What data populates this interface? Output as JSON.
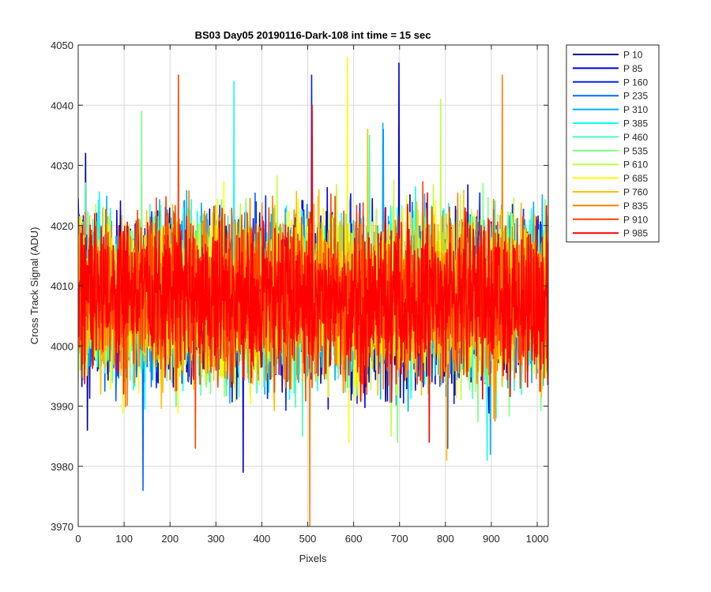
{
  "chart_data": {
    "type": "line",
    "title": "BS03 Day05 20190116-Dark-108 int time = 15 sec",
    "xlabel": "Pixels",
    "ylabel": "Cross Track Signal (ADU)",
    "xlim": [
      0,
      1024
    ],
    "ylim": [
      3970,
      4050
    ],
    "xticks": [
      0,
      100,
      200,
      300,
      400,
      500,
      600,
      700,
      800,
      900,
      1000
    ],
    "yticks": [
      3970,
      3980,
      3990,
      4000,
      4010,
      4020,
      4030,
      4040,
      4050
    ],
    "grid": true,
    "legend_location": "outside-top-right",
    "noise_model": {
      "center": 4008,
      "typical_range": [
        3990,
        4030
      ],
      "samples_per_series": 1024
    },
    "series": [
      {
        "name": "P 10",
        "color": "#00008f",
        "min": 3986,
        "max": 4032
      },
      {
        "name": "P 85",
        "color": "#0000d8",
        "min": 3979,
        "max": 4047
      },
      {
        "name": "P 160",
        "color": "#0020ff",
        "min": 3983,
        "max": 4045
      },
      {
        "name": "P 235",
        "color": "#0068ff",
        "min": 3976,
        "max": 4036
      },
      {
        "name": "P 310",
        "color": "#00b0ff",
        "min": 3982,
        "max": 4037
      },
      {
        "name": "P 385",
        "color": "#10ffef",
        "min": 3981,
        "max": 4044
      },
      {
        "name": "P 460",
        "color": "#48ffb7",
        "min": 3985,
        "max": 4035
      },
      {
        "name": "P 535",
        "color": "#80ff80",
        "min": 3984,
        "max": 4039
      },
      {
        "name": "P 610",
        "color": "#c0ff40",
        "min": 3985,
        "max": 4041
      },
      {
        "name": "P 685",
        "color": "#ffff00",
        "min": 3984,
        "max": 4048
      },
      {
        "name": "P 760",
        "color": "#ffc000",
        "min": 3981,
        "max": 4036
      },
      {
        "name": "P 835",
        "color": "#ff8000",
        "min": 3970,
        "max": 4045
      },
      {
        "name": "P 910",
        "color": "#ff4000",
        "min": 3983,
        "max": 4045
      },
      {
        "name": "P 985",
        "color": "#ff0000",
        "min": 3984,
        "max": 4040
      }
    ]
  }
}
